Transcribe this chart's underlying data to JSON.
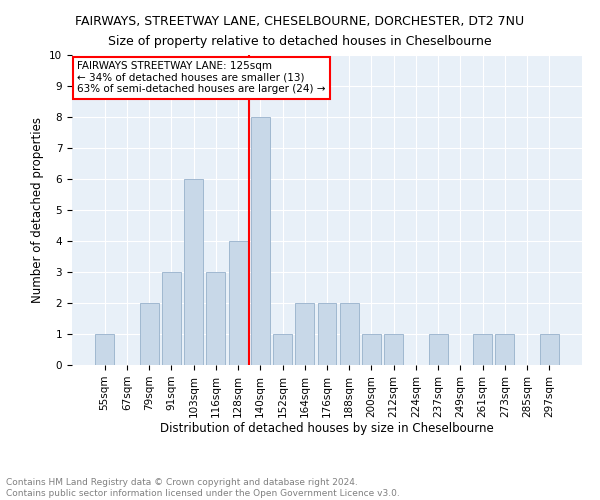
{
  "title": "FAIRWAYS, STREETWAY LANE, CHESELBOURNE, DORCHESTER, DT2 7NU",
  "subtitle": "Size of property relative to detached houses in Cheselbourne",
  "xlabel": "Distribution of detached houses by size in Cheselbourne",
  "ylabel": "Number of detached properties",
  "categories": [
    "55sqm",
    "67sqm",
    "79sqm",
    "91sqm",
    "103sqm",
    "116sqm",
    "128sqm",
    "140sqm",
    "152sqm",
    "164sqm",
    "176sqm",
    "188sqm",
    "200sqm",
    "212sqm",
    "224sqm",
    "237sqm",
    "249sqm",
    "261sqm",
    "273sqm",
    "285sqm",
    "297sqm"
  ],
  "values": [
    1,
    0,
    2,
    3,
    6,
    3,
    4,
    8,
    1,
    2,
    2,
    2,
    1,
    1,
    0,
    1,
    0,
    1,
    1,
    0,
    1
  ],
  "bar_color": "#c8d8e8",
  "bar_edge_color": "#a0b8d0",
  "reference_line_x": 6.5,
  "reference_line_color": "red",
  "annotation_line1": "FAIRWAYS STREETWAY LANE: 125sqm",
  "annotation_line2": "← 34% of detached houses are smaller (13)",
  "annotation_line3": "63% of semi-detached houses are larger (24) →",
  "annotation_box_color": "white",
  "annotation_box_edge_color": "red",
  "ylim": [
    0,
    10
  ],
  "yticks": [
    0,
    1,
    2,
    3,
    4,
    5,
    6,
    7,
    8,
    9,
    10
  ],
  "background_color": "#e8f0f8",
  "footer_text": "Contains HM Land Registry data © Crown copyright and database right 2024.\nContains public sector information licensed under the Open Government Licence v3.0.",
  "title_fontsize": 9,
  "subtitle_fontsize": 9,
  "xlabel_fontsize": 8.5,
  "ylabel_fontsize": 8.5,
  "tick_fontsize": 7.5,
  "annotation_fontsize": 7.5,
  "footer_fontsize": 6.5
}
